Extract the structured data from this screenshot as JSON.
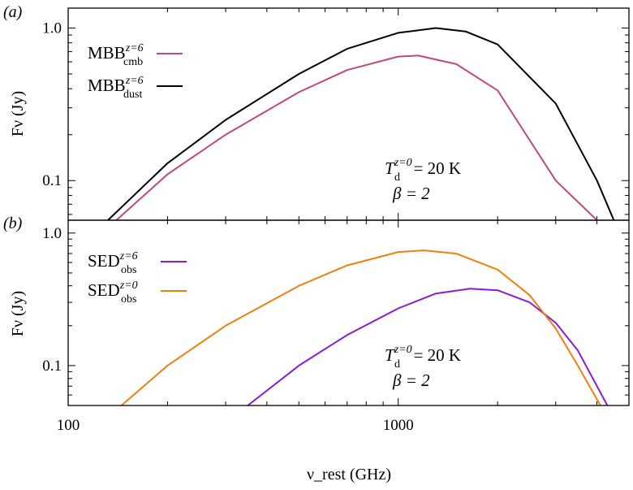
{
  "chart_data": [
    {
      "panel": "(a)",
      "type": "line",
      "xlabel": "ν_rest (GHz)",
      "ylabel": "Fν (Jy)",
      "xscale": "log",
      "yscale": "log",
      "xlim": [
        100,
        5000
      ],
      "ylim": [
        0.055,
        1.35
      ],
      "x_ticks": [
        "100",
        "1000"
      ],
      "y_ticks": [
        "0.1",
        "1.0"
      ],
      "grid": false,
      "legend_position": "top-left",
      "annotation": {
        "T_base": "T",
        "T_sub": "d",
        "T_sup": "z=0",
        "T_value": "= 20 K",
        "beta": "β = 2"
      },
      "series": [
        {
          "name": "MBB_cmb^{z=6}",
          "legend_base": "MBB",
          "legend_sup": "z=6",
          "legend_sub": "cmb",
          "color": "#c0487f",
          "x": [
            140,
            200,
            300,
            500,
            700,
            1000,
            1150,
            1500,
            2000,
            3000,
            4000
          ],
          "y": [
            0.055,
            0.11,
            0.2,
            0.38,
            0.53,
            0.65,
            0.66,
            0.58,
            0.39,
            0.1,
            0.055
          ]
        },
        {
          "name": "MBB_dust^{z=6}",
          "legend_base": "MBB",
          "legend_sup": "z=6",
          "legend_sub": "dust",
          "color": "#000000",
          "x": [
            132,
            200,
            300,
            500,
            700,
            1000,
            1300,
            1600,
            2000,
            3000,
            4000,
            4500
          ],
          "y": [
            0.055,
            0.13,
            0.25,
            0.5,
            0.73,
            0.93,
            1.0,
            0.95,
            0.78,
            0.32,
            0.1,
            0.055
          ]
        }
      ]
    },
    {
      "panel": "(b)",
      "type": "line",
      "xlabel": "ν_rest (GHz)",
      "ylabel": "Fν (Jy)",
      "xscale": "log",
      "yscale": "log",
      "xlim": [
        100,
        5000
      ],
      "ylim": [
        0.05,
        1.25
      ],
      "x_ticks": [
        "100",
        "1000"
      ],
      "y_ticks": [
        "0.1",
        "1.0"
      ],
      "grid": false,
      "legend_position": "top-left",
      "annotation": {
        "T_base": "T",
        "T_sub": "d",
        "T_sup": "z=0",
        "T_value": "= 20 K",
        "beta": "β = 2"
      },
      "series": [
        {
          "name": "SED_obs^{z=6}",
          "legend_base": "SED",
          "legend_sup": "z=6",
          "legend_sub": "obs",
          "color": "#8a1bd6",
          "x": [
            350,
            500,
            700,
            1000,
            1300,
            1650,
            2000,
            2500,
            3000,
            3500,
            4300
          ],
          "y": [
            0.05,
            0.1,
            0.17,
            0.27,
            0.35,
            0.38,
            0.37,
            0.3,
            0.21,
            0.13,
            0.05
          ]
        },
        {
          "name": "SED_obs^{z=0}",
          "legend_base": "SED",
          "legend_sup": "z=0",
          "legend_sub": "obs",
          "color": "#f07f12",
          "x": [
            145,
            200,
            300,
            500,
            700,
            1000,
            1200,
            1500,
            2000,
            2500,
            3000,
            3500,
            4100
          ],
          "y": [
            0.05,
            0.1,
            0.2,
            0.4,
            0.57,
            0.72,
            0.74,
            0.7,
            0.53,
            0.34,
            0.19,
            0.1,
            0.05
          ]
        }
      ]
    }
  ]
}
